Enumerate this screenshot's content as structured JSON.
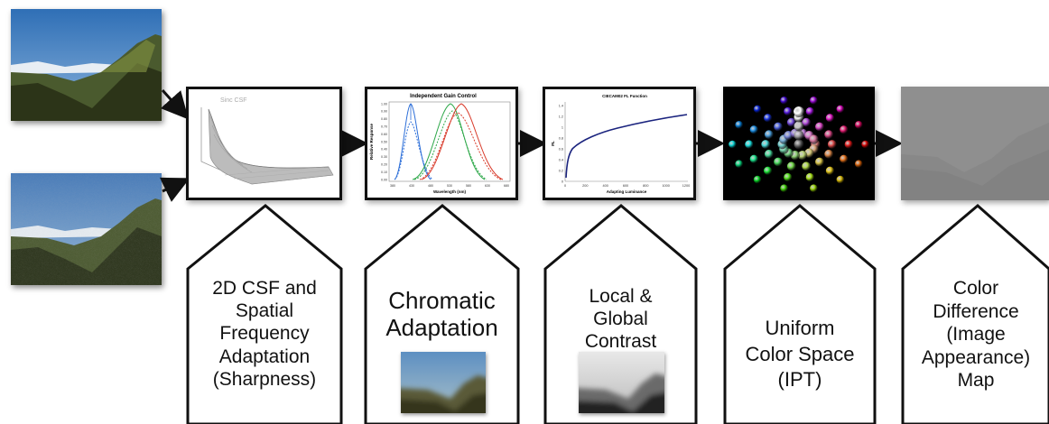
{
  "inputs": [
    {
      "name": "reference-image",
      "icon": "mountain-landscape-photo"
    },
    {
      "name": "noisy-image",
      "icon": "mountain-landscape-noisy-photo"
    }
  ],
  "plots": {
    "csf": {
      "title": "Sinc CSF"
    },
    "gain": {
      "title": "Independent Gain Control",
      "xlabel": "Wavelength (nm)",
      "ylabel": "Relative Response",
      "xticks": [
        "380",
        "430",
        "480",
        "530",
        "580",
        "630",
        "680"
      ],
      "yticks": [
        "0.00",
        "0.10",
        "0.20",
        "0.30",
        "0.40",
        "0.50",
        "0.60",
        "0.70",
        "0.80",
        "0.90",
        "1.00"
      ]
    },
    "fl": {
      "title": "CIECAM02 FL Function",
      "xlabel": "Adapting Luminance",
      "ylabel": "FL",
      "xticks": [
        "0",
        "200",
        "400",
        "600",
        "800",
        "1000",
        "1200"
      ],
      "yticks": [
        "0",
        "0.2",
        "0.4",
        "0.6",
        "0.8",
        "1",
        "1.2",
        "1.4"
      ]
    }
  },
  "stages": [
    {
      "id": "csf",
      "lines": [
        "2D CSF and",
        "Spatial",
        "Frequency",
        "Adaptation",
        "(Sharpness)"
      ]
    },
    {
      "id": "chromatic",
      "lines": [
        "Chromatic",
        "Adaptation"
      ]
    },
    {
      "id": "contrast",
      "lines": [
        "Local &",
        "Global",
        "Contrast"
      ]
    },
    {
      "id": "ipt",
      "lines": [
        "Uniform",
        "Color Space",
        "(IPT)"
      ]
    },
    {
      "id": "difference",
      "lines": [
        "Color",
        "Difference",
        "(Image",
        "Appearance)",
        "Map"
      ]
    }
  ]
}
